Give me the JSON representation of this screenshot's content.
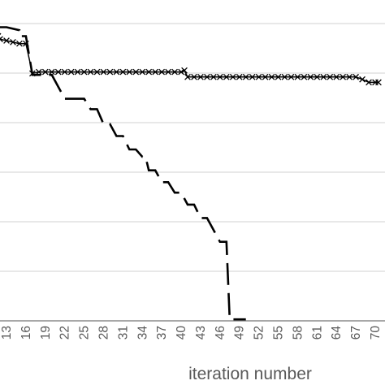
{
  "chart_data": {
    "type": "line",
    "title": "",
    "xlabel": "iteration number",
    "ylabel": "",
    "x_ticks": [
      "13",
      "16",
      "19",
      "22",
      "25",
      "28",
      "31",
      "34",
      "37",
      "40",
      "43",
      "46",
      "49",
      "52",
      "55",
      "58",
      "61",
      "64",
      "67",
      "70"
    ],
    "xlim": [
      11.7,
      70.5
    ],
    "ylim": [
      0,
      1
    ],
    "grid": true,
    "legend": "none",
    "series": [
      {
        "style": "dashed-step",
        "points": [
          [
            11.7,
            0.985
          ],
          [
            13,
            0.985
          ],
          [
            15,
            0.975
          ],
          [
            15,
            0.955
          ],
          [
            16,
            0.955
          ],
          [
            17,
            0.825
          ],
          [
            20,
            0.825
          ],
          [
            22,
            0.745
          ],
          [
            25,
            0.745
          ],
          [
            26,
            0.71
          ],
          [
            27,
            0.71
          ],
          [
            28,
            0.66
          ],
          [
            29,
            0.66
          ],
          [
            30,
            0.62
          ],
          [
            31,
            0.62
          ],
          [
            32,
            0.575
          ],
          [
            33,
            0.575
          ],
          [
            34,
            0.55
          ],
          [
            34.5,
            0.55
          ],
          [
            35,
            0.505
          ],
          [
            36,
            0.505
          ],
          [
            37,
            0.465
          ],
          [
            38,
            0.465
          ],
          [
            39,
            0.43
          ],
          [
            40,
            0.43
          ],
          [
            41,
            0.39
          ],
          [
            42,
            0.39
          ],
          [
            43,
            0.345
          ],
          [
            44,
            0.345
          ],
          [
            45,
            0.305
          ],
          [
            46,
            0.265
          ],
          [
            47,
            0.265
          ],
          [
            47.5,
            0.005
          ],
          [
            50,
            0.005
          ]
        ]
      },
      {
        "style": "cross-markers",
        "points": [
          [
            11.7,
            0.955
          ],
          [
            12,
            0.945
          ],
          [
            13,
            0.94
          ],
          [
            14,
            0.935
          ],
          [
            15,
            0.93
          ],
          [
            16,
            0.93
          ],
          [
            17,
            0.83
          ],
          [
            18,
            0.835
          ],
          [
            19,
            0.835
          ],
          [
            20,
            0.835
          ],
          [
            21,
            0.835
          ],
          [
            22,
            0.835
          ],
          [
            23,
            0.835
          ],
          [
            24,
            0.835
          ],
          [
            25,
            0.835
          ],
          [
            26,
            0.835
          ],
          [
            27,
            0.835
          ],
          [
            28,
            0.835
          ],
          [
            29,
            0.835
          ],
          [
            30,
            0.835
          ],
          [
            31,
            0.835
          ],
          [
            32,
            0.835
          ],
          [
            33,
            0.835
          ],
          [
            34,
            0.835
          ],
          [
            35,
            0.835
          ],
          [
            36,
            0.835
          ],
          [
            37,
            0.835
          ],
          [
            38,
            0.835
          ],
          [
            39,
            0.835
          ],
          [
            40,
            0.835
          ],
          [
            40.5,
            0.84
          ],
          [
            41,
            0.818
          ],
          [
            42,
            0.818
          ],
          [
            43,
            0.818
          ],
          [
            44,
            0.818
          ],
          [
            45,
            0.818
          ],
          [
            46,
            0.818
          ],
          [
            47,
            0.818
          ],
          [
            48,
            0.818
          ],
          [
            49,
            0.818
          ],
          [
            50,
            0.818
          ],
          [
            51,
            0.818
          ],
          [
            52,
            0.818
          ],
          [
            53,
            0.818
          ],
          [
            54,
            0.818
          ],
          [
            55,
            0.818
          ],
          [
            56,
            0.818
          ],
          [
            57,
            0.818
          ],
          [
            58,
            0.818
          ],
          [
            59,
            0.818
          ],
          [
            60,
            0.818
          ],
          [
            61,
            0.818
          ],
          [
            62,
            0.818
          ],
          [
            63,
            0.818
          ],
          [
            64,
            0.818
          ],
          [
            65,
            0.818
          ],
          [
            66,
            0.818
          ],
          [
            67,
            0.818
          ],
          [
            68,
            0.81
          ],
          [
            69,
            0.8
          ],
          [
            70,
            0.8
          ],
          [
            70.5,
            0.8
          ]
        ]
      }
    ]
  }
}
